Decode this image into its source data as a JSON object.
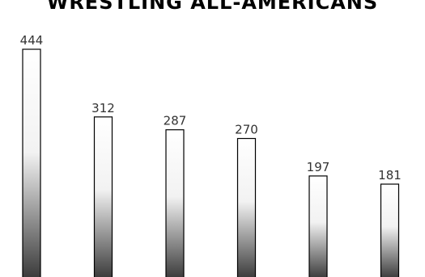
{
  "chart_data": {
    "type": "bar",
    "title": "WRESTLING ALL-AMERICANS",
    "categories": [
      "",
      "",
      "",
      "",
      "",
      ""
    ],
    "values": [
      444,
      312,
      287,
      270,
      197,
      181
    ],
    "ylim": [
      0,
      444
    ],
    "grid": false,
    "data_labels": true,
    "colors": {
      "gradient_top": "#ffffff",
      "gradient_bottom": "#3a3a3a",
      "bar_stroke": "#000000",
      "label": "#333333"
    }
  }
}
